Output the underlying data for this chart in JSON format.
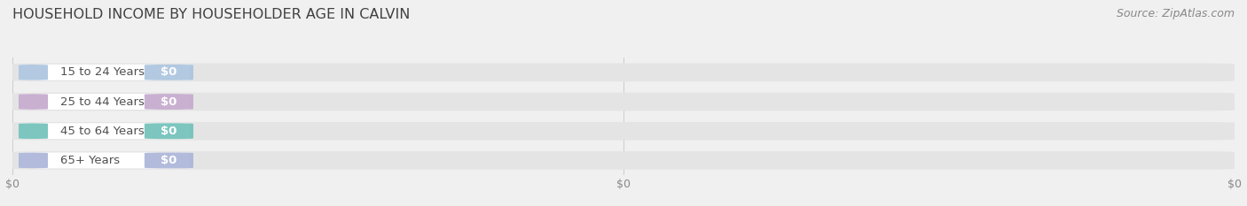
{
  "title": "HOUSEHOLD INCOME BY HOUSEHOLDER AGE IN CALVIN",
  "source": "Source: ZipAtlas.com",
  "categories": [
    "15 to 24 Years",
    "25 to 44 Years",
    "45 to 64 Years",
    "65+ Years"
  ],
  "values": [
    0,
    0,
    0,
    0
  ],
  "bar_colors": [
    "#aac4de",
    "#c4a8cc",
    "#6ec0b8",
    "#aab4d8"
  ],
  "background_color": "#f0f0f0",
  "bar_bg_color": "#e4e4e4",
  "bar_white_color": "#ffffff",
  "title_color": "#404040",
  "label_color": "#505050",
  "tick_color": "#888888",
  "source_color": "#888888",
  "title_fontsize": 11.5,
  "bar_fontsize": 9.5,
  "tick_fontsize": 9,
  "source_fontsize": 9,
  "xticks": [
    0,
    0.5,
    1.0
  ],
  "xtick_labels": [
    "$0",
    "$0",
    "$0"
  ]
}
